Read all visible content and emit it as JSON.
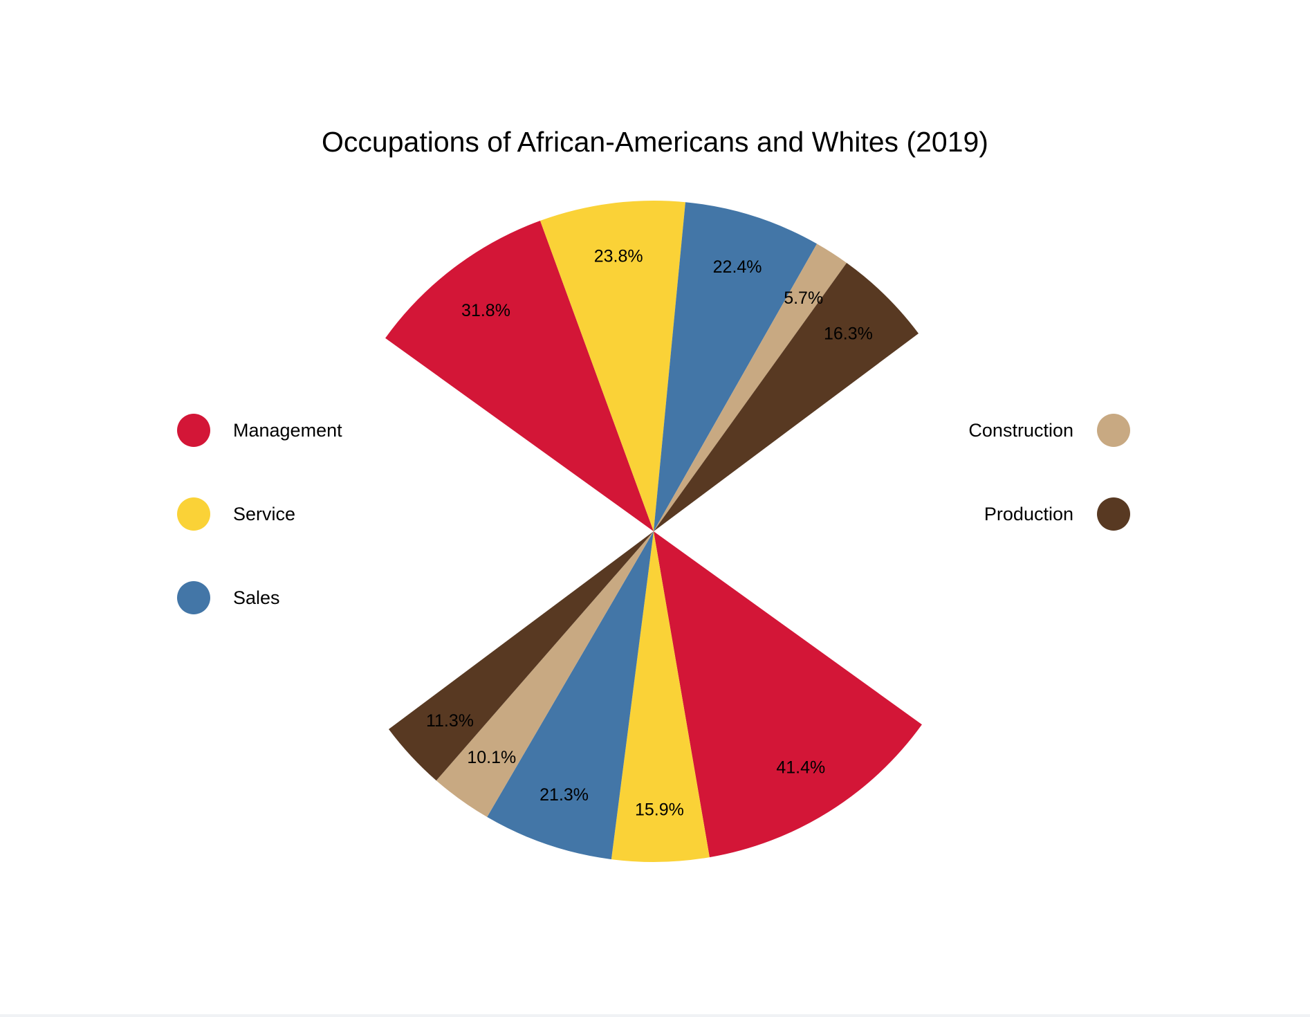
{
  "chart_data": {
    "type": "pie",
    "title": "Occupations of African-Americans and Whites (2019)",
    "categories": [
      "Management",
      "Service",
      "Sales",
      "Construction",
      "Production"
    ],
    "colors": {
      "Management": "#d31637",
      "Service": "#fad237",
      "Sales": "#4376a7",
      "Construction": "#c8a982",
      "Production": "#583922"
    },
    "series": [
      {
        "position": "top",
        "values": [
          31.8,
          23.8,
          22.4,
          5.7,
          16.3
        ],
        "labels": [
          "31.8%",
          "23.8%",
          "22.4%",
          "5.7%",
          "16.3%"
        ]
      },
      {
        "position": "bottom",
        "values": [
          41.4,
          15.9,
          21.3,
          10.1,
          11.3
        ],
        "labels": [
          "41.4%",
          "15.9%",
          "21.3%",
          "10.1%",
          "11.3%"
        ]
      }
    ],
    "legend": {
      "left": [
        "Management",
        "Service",
        "Sales"
      ],
      "right": [
        "Construction",
        "Production"
      ]
    }
  }
}
